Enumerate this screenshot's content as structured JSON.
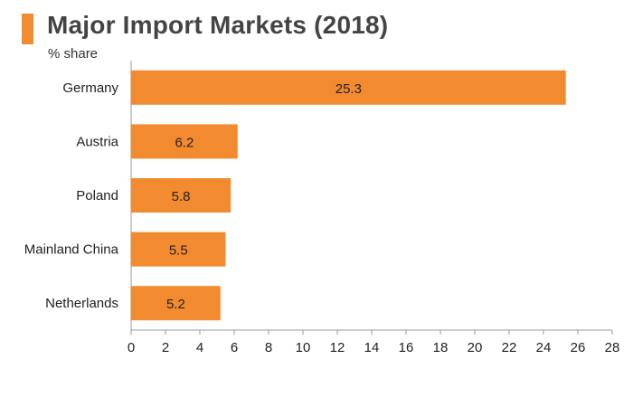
{
  "header": {
    "title": "Major Import Markets (2018)",
    "subtitle": "% share"
  },
  "colors": {
    "accent": "#f28a30",
    "bar": "#f28a30",
    "axis": "#999999",
    "text": "#222222"
  },
  "chart_data": {
    "type": "bar",
    "orientation": "horizontal",
    "title": "Major Import Markets (2018)",
    "subtitle": "% share",
    "categories": [
      "Germany",
      "Austria",
      "Poland",
      "Mainland China",
      "Netherlands"
    ],
    "values": [
      25.3,
      6.2,
      5.8,
      5.5,
      5.2
    ],
    "data_labels": [
      "25.3",
      "6.2",
      "5.8",
      "5.5",
      "5.2"
    ],
    "xlim": [
      0,
      28
    ],
    "x_ticks": [
      0,
      2,
      4,
      6,
      8,
      10,
      12,
      14,
      16,
      18,
      20,
      22,
      24,
      26,
      28
    ],
    "xlabel": "",
    "ylabel": "",
    "grid": false,
    "legend": "none"
  }
}
